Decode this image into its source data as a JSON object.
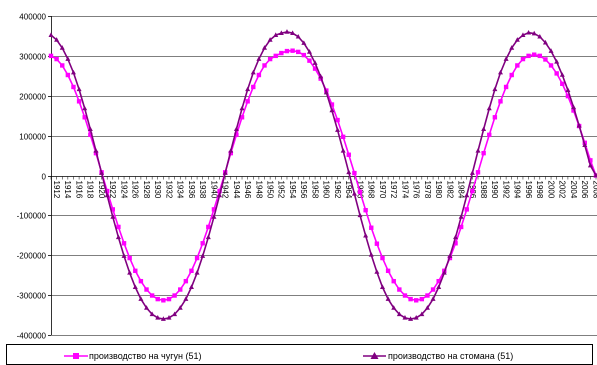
{
  "chart_data": {
    "type": "line",
    "x_start_year": 1912,
    "x_end_year": 2009,
    "ylim": [
      -400000,
      400000
    ],
    "y_ticks": [
      400000,
      300000,
      200000,
      100000,
      0,
      -100000,
      -200000,
      -300000,
      -400000
    ],
    "y_tick_labels": [
      "400000",
      "300000",
      "200000",
      "100000",
      "0",
      "-100000",
      "-200000",
      "-300000",
      "-400000"
    ],
    "x_tick_labels": [
      "1912",
      "1914",
      "1916",
      "1918",
      "1920",
      "1922",
      "1924",
      "1926",
      "1928",
      "1930",
      "1932",
      "1934",
      "1936",
      "1938",
      "1940",
      "1942",
      "1944",
      "1946",
      "1948",
      "1950",
      "1952",
      "1954",
      "1956",
      "1958",
      "1960",
      "1962",
      "1964",
      "1966",
      "1968",
      "1970",
      "1972",
      "1974",
      "1976",
      "1978",
      "1980",
      "1982",
      "1984",
      "1986",
      "1988",
      "1990",
      "1992",
      "1994",
      "1996",
      "1998",
      "2000",
      "2002",
      "2004",
      "2006",
      "2008"
    ],
    "grid": "horizontal",
    "legend_position": "bottom",
    "series": [
      {
        "name": "производство на чугун (51)",
        "color": "#ff00ff",
        "marker": "square",
        "values": [
          300000,
          292000,
          276000,
          252000,
          222000,
          186000,
          146000,
          102000,
          56000,
          8000,
          -39000,
          -85000,
          -129000,
          -170000,
          -207000,
          -239000,
          -265000,
          -286000,
          -301000,
          -310000,
          -313000,
          -310000,
          -301000,
          -286000,
          -265000,
          -239000,
          -207000,
          -170000,
          -129000,
          -85000,
          -39000,
          8000,
          56000,
          102000,
          146000,
          186000,
          222000,
          252000,
          276000,
          292000,
          300000,
          307000,
          312000,
          313000,
          310000,
          302000,
          288000,
          268000,
          243000,
          213000,
          178000,
          139000,
          97000,
          52000,
          6000,
          -41000,
          -87000,
          -131000,
          -171000,
          -207000,
          -239000,
          -265000,
          -286000,
          -301000,
          -310000,
          -313000,
          -310000,
          -301000,
          -286000,
          -265000,
          -239000,
          -207000,
          -170000,
          -129000,
          -85000,
          -39000,
          8000,
          56000,
          102000,
          146000,
          186000,
          222000,
          252000,
          276000,
          292000,
          300000,
          303000,
          300000,
          291000,
          276000,
          256000,
          230000,
          199000,
          163000,
          124000,
          82000,
          38000,
          0
        ]
      },
      {
        "name": "производство на стомана (51)",
        "color": "#800080",
        "marker": "triangle",
        "values": [
          352000,
          340000,
          320000,
          292000,
          258000,
          216000,
          168000,
          116000,
          62000,
          6000,
          -50000,
          -104000,
          -155000,
          -202000,
          -244000,
          -280000,
          -310000,
          -332000,
          -348000,
          -357000,
          -360000,
          -357000,
          -348000,
          -332000,
          -310000,
          -280000,
          -244000,
          -202000,
          -155000,
          -104000,
          -50000,
          6000,
          62000,
          116000,
          168000,
          216000,
          258000,
          292000,
          320000,
          340000,
          352000,
          357000,
          360000,
          357000,
          348000,
          332000,
          310000,
          282000,
          248000,
          208000,
          163000,
          114000,
          62000,
          8000,
          -46000,
          -100000,
          -151000,
          -199000,
          -242000,
          -280000,
          -310000,
          -332000,
          -348000,
          -357000,
          -360000,
          -357000,
          -348000,
          -332000,
          -310000,
          -280000,
          -244000,
          -202000,
          -155000,
          -104000,
          -50000,
          6000,
          62000,
          116000,
          168000,
          216000,
          258000,
          292000,
          320000,
          340000,
          352000,
          358000,
          356000,
          348000,
          333000,
          312000,
          285000,
          252000,
          214000,
          171000,
          125000,
          76000,
          25000,
          0
        ]
      }
    ]
  }
}
